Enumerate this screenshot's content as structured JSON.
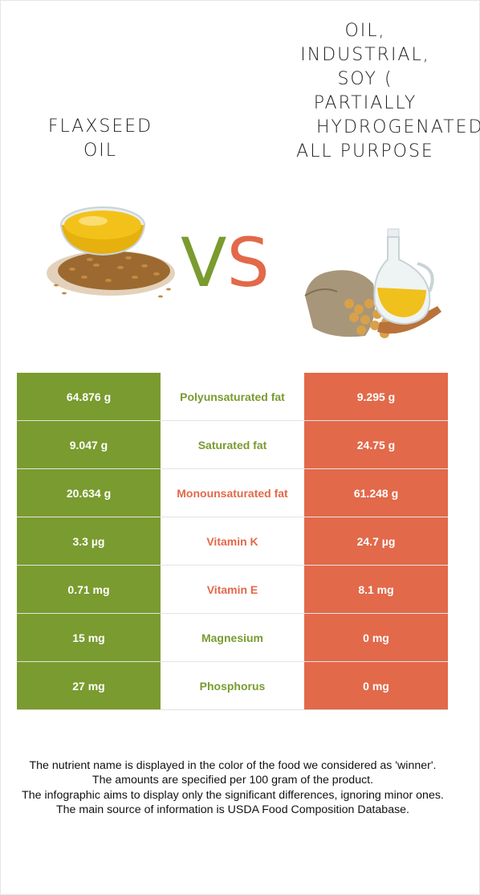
{
  "left_food": {
    "title": "FLAXSEED\nOIL",
    "image_icon": "flaxseed-oil-bowl-image"
  },
  "right_food": {
    "title": "OIL,\nINDUSTRIAL,\nSOY (\nPARTIALLY\n      HYDROGENATED),\nALL PURPOSE",
    "image_icon": "soy-oil-jug-image"
  },
  "vs": {
    "v": "V",
    "s": "S"
  },
  "colors": {
    "left": "#7a9b2f",
    "right": "#e2694a"
  },
  "rows": [
    {
      "left": "64.876 g",
      "name": "Polyunsaturated fat",
      "right": "9.295 g",
      "winner": "left"
    },
    {
      "left": "9.047 g",
      "name": "Saturated fat",
      "right": "24.75 g",
      "winner": "left"
    },
    {
      "left": "20.634 g",
      "name": "Monounsaturated fat",
      "right": "61.248 g",
      "winner": "right"
    },
    {
      "left": "3.3 µg",
      "name": "Vitamin K",
      "right": "24.7 µg",
      "winner": "right"
    },
    {
      "left": "0.71 mg",
      "name": "Vitamin E",
      "right": "8.1 mg",
      "winner": "right"
    },
    {
      "left": "15 mg",
      "name": "Magnesium",
      "right": "0 mg",
      "winner": "left"
    },
    {
      "left": "27 mg",
      "name": "Phosphorus",
      "right": "0 mg",
      "winner": "left"
    }
  ],
  "footer": [
    "The nutrient name is displayed in the color of the food we considered as 'winner'.",
    "The amounts are specified per 100 gram of the product.",
    "The infographic aims to display only the significant differences, ignoring minor ones.",
    "The main source of information is USDA Food Composition Database."
  ]
}
